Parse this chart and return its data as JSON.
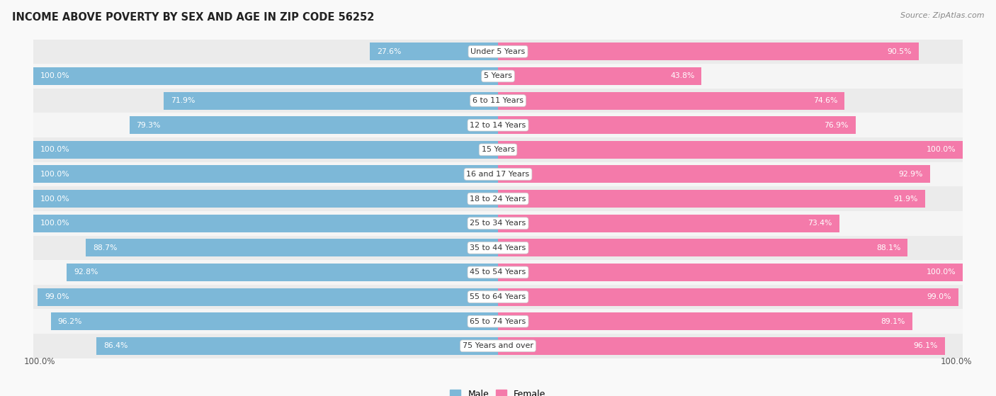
{
  "title": "INCOME ABOVE POVERTY BY SEX AND AGE IN ZIP CODE 56252",
  "source": "Source: ZipAtlas.com",
  "categories": [
    "Under 5 Years",
    "5 Years",
    "6 to 11 Years",
    "12 to 14 Years",
    "15 Years",
    "16 and 17 Years",
    "18 to 24 Years",
    "25 to 34 Years",
    "35 to 44 Years",
    "45 to 54 Years",
    "55 to 64 Years",
    "65 to 74 Years",
    "75 Years and over"
  ],
  "male_values": [
    27.6,
    100.0,
    71.9,
    79.3,
    100.0,
    100.0,
    100.0,
    100.0,
    88.7,
    92.8,
    99.0,
    96.2,
    86.4
  ],
  "female_values": [
    90.5,
    43.8,
    74.6,
    76.9,
    100.0,
    92.9,
    91.9,
    73.4,
    88.1,
    100.0,
    99.0,
    89.1,
    96.1
  ],
  "male_color": "#7db8d8",
  "female_color": "#f47aaa",
  "male_label": "Male",
  "female_label": "Female",
  "even_row_color": "#ebebeb",
  "odd_row_color": "#f5f5f5",
  "bar_height": 0.72,
  "max_value": 100.0,
  "title_fontsize": 10.5,
  "source_fontsize": 8,
  "label_fontsize": 8,
  "value_fontsize": 7.8
}
